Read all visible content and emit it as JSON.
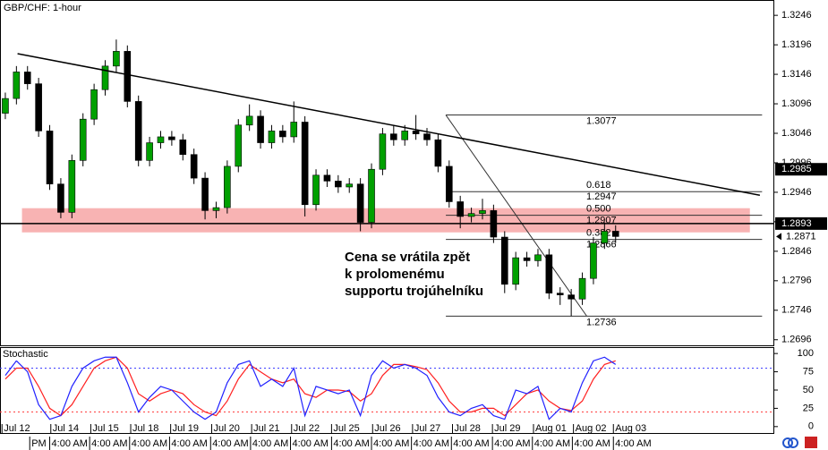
{
  "chart_data": {
    "type": "candlestick",
    "title": "GBP/CHF: 1-hour",
    "xlim": [
      -0.48,
      69.3
    ],
    "ylim": [
      1.2685,
      1.3272
    ],
    "yticks": [
      1.3246,
      1.3196,
      1.3146,
      1.3096,
      1.3046,
      1.2996,
      1.2946,
      1.2896,
      1.2846,
      1.2796,
      1.2746,
      1.2696
    ],
    "up_color": "#00a000",
    "down_color": "#000000",
    "open": [
      1.308,
      1.3105,
      1.315,
      1.313,
      1.305,
      1.296,
      1.2912,
      1.3,
      1.307,
      1.312,
      1.316,
      1.3185,
      1.31,
      1.3,
      1.303,
      1.304,
      1.3035,
      1.301,
      1.297,
      1.2915,
      1.292,
      1.299,
      1.306,
      1.3075,
      1.303,
      1.305,
      1.304,
      1.3065,
      1.2925,
      1.2975,
      1.2965,
      1.2955,
      1.296,
      1.2895,
      1.2985,
      1.3045,
      1.3035,
      1.305,
      1.3045,
      1.3035,
      1.299,
      1.293,
      1.2905,
      1.291,
      1.2915,
      1.287,
      1.279,
      1.2835,
      1.283,
      1.284,
      1.2775,
      1.2772,
      1.2765,
      1.28,
      1.286,
      1.288
    ],
    "high": [
      1.3115,
      1.316,
      1.316,
      1.314,
      1.306,
      1.297,
      1.301,
      1.308,
      1.313,
      1.317,
      1.3205,
      1.3195,
      1.311,
      1.304,
      1.305,
      1.305,
      1.3045,
      1.302,
      1.298,
      1.293,
      1.3,
      1.307,
      1.3095,
      1.3085,
      1.306,
      1.306,
      1.31,
      1.3075,
      1.2985,
      1.2985,
      1.2975,
      1.297,
      1.297,
      1.2995,
      1.3055,
      1.306,
      1.306,
      1.3077,
      1.3055,
      1.3045,
      1.3,
      1.294,
      1.292,
      1.2935,
      1.2925,
      1.288,
      1.2845,
      1.2845,
      1.285,
      1.285,
      1.2785,
      1.2782,
      1.281,
      1.287,
      1.2895,
      1.289
    ],
    "low": [
      1.307,
      1.3095,
      1.312,
      1.304,
      1.295,
      1.2902,
      1.2902,
      1.299,
      1.306,
      1.311,
      1.315,
      1.309,
      1.299,
      1.299,
      1.302,
      1.3025,
      1.3,
      1.296,
      1.29,
      1.2902,
      1.291,
      1.298,
      1.305,
      1.302,
      1.302,
      1.303,
      1.303,
      1.2905,
      1.2915,
      1.2955,
      1.2945,
      1.2945,
      1.288,
      1.2885,
      1.2975,
      1.3025,
      1.3025,
      1.3035,
      1.3025,
      1.298,
      1.292,
      1.2885,
      1.2895,
      1.29,
      1.286,
      1.2775,
      1.278,
      1.282,
      1.282,
      1.2765,
      1.2755,
      1.2736,
      1.2755,
      1.279,
      1.285,
      1.286
    ],
    "close": [
      1.3105,
      1.315,
      1.313,
      1.305,
      1.296,
      1.2912,
      1.3,
      1.307,
      1.312,
      1.316,
      1.3185,
      1.31,
      1.3,
      1.303,
      1.304,
      1.3035,
      1.301,
      1.297,
      1.2915,
      1.292,
      1.299,
      1.306,
      1.3075,
      1.303,
      1.305,
      1.304,
      1.3065,
      1.2925,
      1.2975,
      1.2965,
      1.2955,
      1.296,
      1.2895,
      1.2985,
      1.3045,
      1.3035,
      1.305,
      1.3045,
      1.3035,
      1.299,
      1.293,
      1.2905,
      1.291,
      1.2915,
      1.287,
      1.279,
      1.2835,
      1.283,
      1.284,
      1.2775,
      1.2772,
      1.2765,
      1.28,
      1.286,
      1.288,
      1.2871
    ],
    "xticks": [
      {
        "value": -0.3,
        "label": "Jul 12"
      },
      {
        "value": 4.1,
        "label": "Jul 14"
      },
      {
        "value": 7.7,
        "label": "Jul 15"
      },
      {
        "value": 11.3,
        "label": "Jul 18"
      },
      {
        "value": 14.9,
        "label": "Jul 19"
      },
      {
        "value": 18.6,
        "label": "Jul 20"
      },
      {
        "value": 22.2,
        "label": "Jul 21"
      },
      {
        "value": 25.8,
        "label": "Jul 22"
      },
      {
        "value": 29.4,
        "label": "Jul 25"
      },
      {
        "value": 33.1,
        "label": "Jul 26"
      },
      {
        "value": 36.7,
        "label": "Jul 27"
      },
      {
        "value": 40.3,
        "label": "Jul 28"
      },
      {
        "value": 43.9,
        "label": "Jul 29"
      },
      {
        "value": 47.6,
        "label": "Aug 01"
      },
      {
        "value": 51.2,
        "label": "Aug 02"
      },
      {
        "value": 54.8,
        "label": "Aug 03"
      }
    ],
    "x2ticks": [
      {
        "value": 2.2,
        "label": "PM"
      },
      {
        "value": 4.0,
        "label": "4:00 AM"
      },
      {
        "value": 7.6,
        "label": "4:00 AM"
      },
      {
        "value": 11.2,
        "label": "4:00 AM"
      },
      {
        "value": 14.8,
        "label": "4:00 AM"
      },
      {
        "value": 18.5,
        "label": "4:00 AM"
      },
      {
        "value": 22.1,
        "label": "4:00 AM"
      },
      {
        "value": 25.7,
        "label": "4:00 AM"
      },
      {
        "value": 29.4,
        "label": "4:00 AM"
      },
      {
        "value": 33.0,
        "label": "4:00 AM"
      },
      {
        "value": 36.6,
        "label": "4:00 AM"
      },
      {
        "value": 40.2,
        "label": "4:00 AM"
      },
      {
        "value": 43.9,
        "label": "4:00 AM"
      },
      {
        "value": 47.5,
        "label": "4:00 AM"
      },
      {
        "value": 51.1,
        "label": "4:00 AM"
      },
      {
        "value": 54.8,
        "label": "4:00 AM"
      }
    ],
    "trendline": {
      "x": [
        1.1,
        68.0
      ],
      "y": [
        1.3181,
        1.2941
      ],
      "color": "#000000"
    },
    "support_line": 1.2893,
    "zone": {
      "x": [
        1.5,
        67.1
      ],
      "y": [
        1.2878,
        1.2919
      ],
      "color": "#f7a6a6"
    },
    "fibonacci": {
      "x": [
        39.7,
        52.4
      ],
      "x_end": 68.2,
      "high": 1.3077,
      "low": 1.2736,
      "levels": [
        {
          "ratio": "0.618",
          "price": 1.2947
        },
        {
          "ratio": "0.500",
          "price": 1.2907
        },
        {
          "ratio": "0.382",
          "price": 1.2866
        }
      ]
    },
    "price_markers": [
      1.2985,
      1.2893
    ],
    "current_price": 1.2871,
    "annotation": "Cena se vrátila zpět k prolomenému supportu trojúhelníku",
    "indicator": {
      "type": "line",
      "title": "Stochastic",
      "ylim": [
        -10,
        108.75
      ],
      "yticks": [
        100,
        75,
        50,
        25,
        0
      ],
      "levels": [
        {
          "value": 80,
          "color": "#4040ff"
        },
        {
          "value": 20,
          "color": "#ff4040"
        }
      ],
      "series": [
        {
          "color": "#ff2020",
          "values": [
            65,
            80,
            80,
            55,
            25,
            15,
            30,
            55,
            80,
            90,
            95,
            80,
            45,
            35,
            45,
            50,
            45,
            30,
            20,
            15,
            35,
            65,
            85,
            75,
            65,
            60,
            65,
            45,
            40,
            50,
            50,
            48,
            35,
            45,
            70,
            85,
            85,
            82,
            78,
            60,
            35,
            20,
            20,
            25,
            25,
            15,
            30,
            45,
            50,
            35,
            25,
            22,
            35,
            65,
            85,
            90
          ]
        },
        {
          "color": "#2020ff",
          "values": [
            70,
            90,
            75,
            30,
            10,
            15,
            55,
            80,
            90,
            95,
            95,
            60,
            20,
            40,
            55,
            50,
            35,
            20,
            10,
            20,
            60,
            85,
            90,
            55,
            65,
            55,
            80,
            15,
            55,
            50,
            45,
            50,
            15,
            70,
            90,
            80,
            85,
            80,
            70,
            40,
            20,
            15,
            25,
            30,
            15,
            10,
            50,
            45,
            55,
            10,
            25,
            20,
            60,
            90,
            95,
            85
          ]
        }
      ]
    }
  }
}
